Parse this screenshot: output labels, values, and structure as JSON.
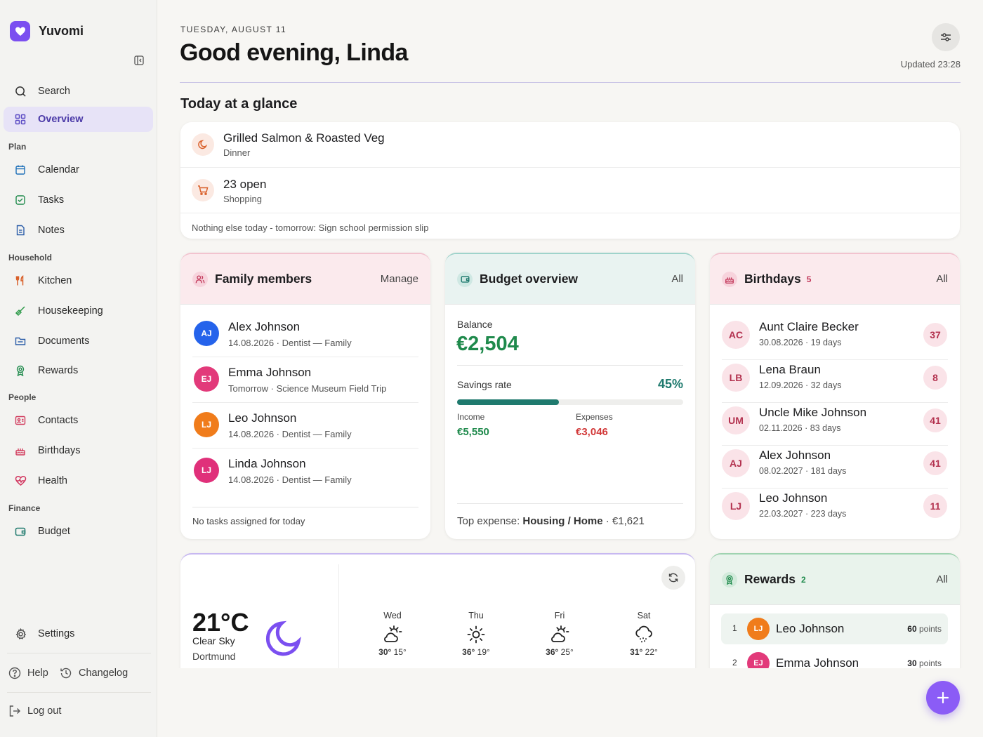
{
  "app": {
    "name": "Yuvomi"
  },
  "sidebar": {
    "search": "Search",
    "overview": "Overview",
    "sections": {
      "plan": "Plan",
      "household": "Household",
      "people": "People",
      "finance": "Finance"
    },
    "items": {
      "calendar": "Calendar",
      "tasks": "Tasks",
      "notes": "Notes",
      "kitchen": "Kitchen",
      "housekeeping": "Housekeeping",
      "documents": "Documents",
      "rewards": "Rewards",
      "contacts": "Contacts",
      "birthdays": "Birthdays",
      "health": "Health",
      "budget": "Budget"
    },
    "settings": "Settings",
    "help": "Help",
    "changelog": "Changelog",
    "logout": "Log out"
  },
  "header": {
    "date": "TUESDAY, AUGUST 11",
    "greeting": "Good evening, Linda",
    "updated": "Updated 23:28"
  },
  "glance": {
    "title": "Today at a glance",
    "meal": {
      "title": "Grilled Salmon & Roasted Veg",
      "sub": "Dinner"
    },
    "shopping": {
      "title": "23 open",
      "sub": "Shopping"
    },
    "note": "Nothing else today - tomorrow: Sign school permission slip"
  },
  "family": {
    "title": "Family members",
    "action": "Manage",
    "members": [
      {
        "initials": "AJ",
        "name": "Alex Johnson",
        "sub": "14.08.2026 · Dentist — Family",
        "color": "#2563eb"
      },
      {
        "initials": "EJ",
        "name": "Emma Johnson",
        "sub": "Tomorrow · Science Museum Field Trip",
        "color": "#e23a7a"
      },
      {
        "initials": "LJ",
        "name": "Leo Johnson",
        "sub": "14.08.2026 · Dentist — Family",
        "color": "#f07c1b"
      },
      {
        "initials": "LJ",
        "name": "Linda Johnson",
        "sub": "14.08.2026 · Dentist — Family",
        "color": "#e0307a"
      }
    ],
    "footer": "No tasks assigned for today"
  },
  "budget": {
    "title": "Budget overview",
    "action": "All",
    "balance_label": "Balance",
    "balance": "€2,504",
    "savings_label": "Savings rate",
    "savings_rate": "45%",
    "savings_fraction": 0.45,
    "income_label": "Income",
    "income": "€5,550",
    "expenses_label": "Expenses",
    "expenses": "€3,046",
    "top_prefix": "Top expense:",
    "top_category": "Housing / Home",
    "top_amount": "· €1,621",
    "colors": {
      "positive": "#1f8a4c",
      "negative": "#d23a3a",
      "accent": "#1f7a6e"
    }
  },
  "birthdays": {
    "title": "Birthdays",
    "count": "5",
    "action": "All",
    "people": [
      {
        "initials": "AC",
        "name": "Aunt Claire Becker",
        "sub": "30.08.2026 · 19 days",
        "age": "37"
      },
      {
        "initials": "LB",
        "name": "Lena Braun",
        "sub": "12.09.2026 · 32 days",
        "age": "8"
      },
      {
        "initials": "UM",
        "name": "Uncle Mike Johnson",
        "sub": "02.11.2026 · 83 days",
        "age": "41"
      },
      {
        "initials": "AJ",
        "name": "Alex Johnson",
        "sub": "08.02.2027 · 181 days",
        "age": "41"
      },
      {
        "initials": "LJ",
        "name": "Leo Johnson",
        "sub": "22.03.2027 · 223 days",
        "age": "11"
      }
    ]
  },
  "weather": {
    "temp": "21°C",
    "condition": "Clear Sky",
    "city": "Dortmund",
    "current_icon": "moon-icon",
    "forecast": [
      {
        "day": "Wed",
        "high": "30°",
        "low": "15°",
        "icon": "partly-cloudy-icon"
      },
      {
        "day": "Thu",
        "high": "36°",
        "low": "19°",
        "icon": "sun-icon"
      },
      {
        "day": "Fri",
        "high": "36°",
        "low": "25°",
        "icon": "partly-cloudy-icon"
      },
      {
        "day": "Sat",
        "high": "31°",
        "low": "22°",
        "icon": "drizzle-icon"
      }
    ]
  },
  "rewards": {
    "title": "Rewards",
    "count": "2",
    "action": "All",
    "points_label": "points",
    "leaders": [
      {
        "rank": "1",
        "initials": "LJ",
        "name": "Leo Johnson",
        "points": "60",
        "color": "#f07c1b"
      },
      {
        "rank": "2",
        "initials": "EJ",
        "name": "Emma Johnson",
        "points": "30",
        "color": "#e23a7a"
      }
    ]
  }
}
